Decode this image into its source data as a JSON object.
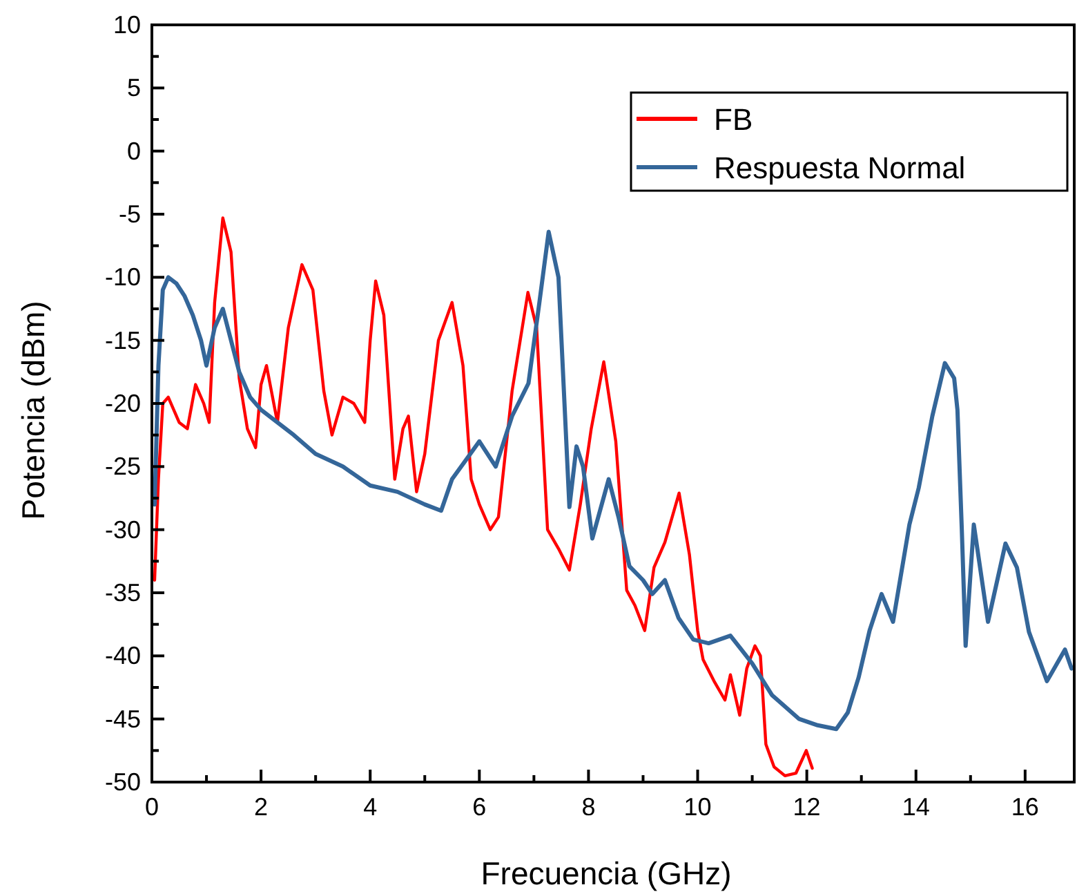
{
  "chart_data": {
    "type": "line",
    "xlabel": "Frecuencia (GHz)",
    "ylabel": "Potencia (dBm)",
    "xlim": [
      0,
      16.9
    ],
    "ylim": [
      -50,
      10
    ],
    "xticks": [
      0,
      2,
      4,
      6,
      8,
      10,
      12,
      14,
      16
    ],
    "yticks": [
      -50,
      -45,
      -40,
      -35,
      -30,
      -25,
      -20,
      -15,
      -10,
      -5,
      0,
      5,
      10
    ],
    "grid": false,
    "legend": "top right",
    "line_style": "solid",
    "marker": "none",
    "series": [
      {
        "name": "FB",
        "color": "#ff0000",
        "x": [
          0.05,
          0.12,
          0.2,
          0.3,
          0.5,
          0.65,
          0.8,
          0.95,
          1.05,
          1.15,
          1.3,
          1.45,
          1.6,
          1.75,
          1.9,
          2.0,
          2.1,
          2.3,
          2.5,
          2.75,
          2.95,
          3.15,
          3.3,
          3.5,
          3.7,
          3.9,
          4.0,
          4.1,
          4.25,
          4.45,
          4.6,
          4.7,
          4.85,
          5.0,
          5.25,
          5.5,
          5.7,
          5.85,
          6.0,
          6.2,
          6.35,
          6.6,
          6.89,
          7.05,
          7.25,
          7.45,
          7.65,
          7.85,
          8.05,
          8.28,
          8.5,
          8.7,
          8.85,
          9.03,
          9.2,
          9.4,
          9.66,
          9.85,
          10.0,
          10.1,
          10.3,
          10.5,
          10.6,
          10.77,
          10.9,
          11.05,
          11.15,
          11.25,
          11.4,
          11.6,
          11.8,
          11.99,
          12.1
        ],
        "values": [
          -34,
          -26,
          -20,
          -19.5,
          -21.5,
          -22,
          -18.5,
          -20,
          -21.5,
          -12,
          -5.3,
          -8,
          -18,
          -22,
          -23.5,
          -18.5,
          -17,
          -21.5,
          -14,
          -9,
          -11,
          -19,
          -22.5,
          -19.5,
          -20,
          -21.5,
          -15,
          -10.3,
          -13,
          -26,
          -22,
          -21,
          -27,
          -24,
          -15,
          -12,
          -17,
          -26,
          -28,
          -30,
          -29,
          -19,
          -11.2,
          -14,
          -30,
          -31.5,
          -33.2,
          -28,
          -22,
          -16.7,
          -23,
          -34.8,
          -36,
          -38,
          -33,
          -31,
          -27.1,
          -32,
          -38,
          -40.3,
          -42,
          -43.5,
          -41.5,
          -44.7,
          -41,
          -39.2,
          -40,
          -47,
          -48.8,
          -49.5,
          -49.3,
          -47.5,
          -48.9
        ]
      },
      {
        "name": "Respuesta Normal",
        "color": "#346699",
        "x": [
          0.05,
          0.12,
          0.2,
          0.3,
          0.45,
          0.6,
          0.75,
          0.9,
          1.0,
          1.15,
          1.3,
          1.45,
          1.6,
          1.8,
          2.0,
          2.3,
          2.6,
          3.0,
          3.5,
          4.0,
          4.5,
          5.0,
          5.3,
          5.5,
          5.75,
          6.0,
          6.3,
          6.6,
          6.9,
          7.1,
          7.27,
          7.45,
          7.65,
          7.78,
          7.9,
          8.07,
          8.37,
          8.55,
          8.75,
          9.0,
          9.17,
          9.4,
          9.65,
          9.92,
          10.2,
          10.6,
          10.8,
          11.0,
          11.36,
          11.86,
          12.2,
          12.54,
          12.75,
          12.95,
          13.15,
          13.37,
          13.58,
          13.88,
          14.05,
          14.3,
          14.53,
          14.7,
          14.76,
          14.84,
          14.91,
          15.06,
          15.32,
          15.64,
          15.85,
          16.07,
          16.4,
          16.73,
          16.85
        ],
        "values": [
          -28,
          -17,
          -11,
          -10,
          -10.5,
          -11.5,
          -13,
          -15,
          -17,
          -14,
          -12.5,
          -15,
          -17.5,
          -19.5,
          -20.5,
          -21.5,
          -22.5,
          -24,
          -25,
          -26.5,
          -27,
          -28,
          -28.5,
          -26,
          -24.5,
          -23,
          -25,
          -21,
          -18.4,
          -12,
          -6.4,
          -10,
          -28.2,
          -23.4,
          -25,
          -30.7,
          -26,
          -29,
          -32.9,
          -34,
          -35.1,
          -34,
          -37,
          -38.7,
          -39,
          -38.4,
          -39.5,
          -40.6,
          -43.1,
          -45,
          -45.5,
          -45.8,
          -44.5,
          -41.7,
          -38,
          -35.1,
          -37.3,
          -29.6,
          -26.7,
          -21,
          -16.8,
          -18,
          -20.5,
          -30,
          -39.2,
          -29.6,
          -37.3,
          -31.1,
          -33,
          -38.1,
          -42,
          -39.5,
          -41
        ]
      }
    ]
  }
}
